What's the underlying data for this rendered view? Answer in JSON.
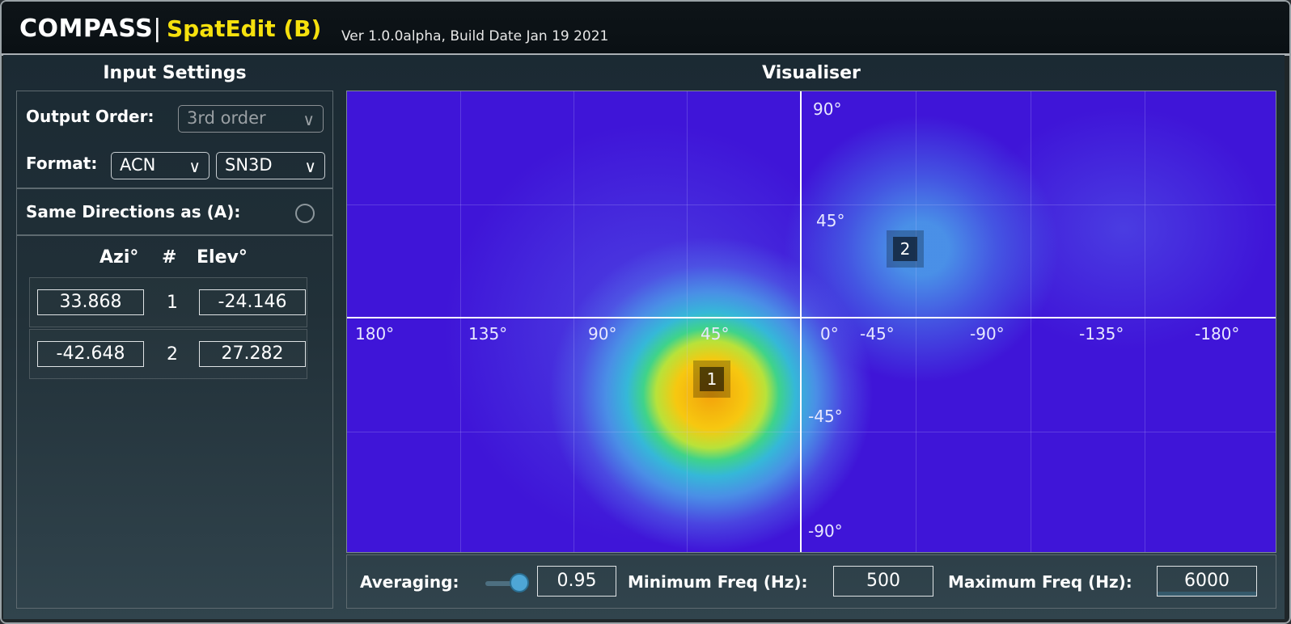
{
  "header": {
    "app_name": "COMPASS",
    "separator": "|",
    "plugin_name": "SpatEdit (B)",
    "version": "Ver 1.0.0alpha, Build Date Jan 19 2021"
  },
  "input_settings": {
    "title": "Input Settings",
    "output_order_label": "Output Order:",
    "output_order_value": "3rd order",
    "format_label": "Format:",
    "format_channel_value": "ACN",
    "format_norm_value": "SN3D",
    "same_directions_label": "Same Directions as (A):",
    "same_directions_checked": false,
    "table_headers": {
      "azi": "Azi°",
      "num": "#",
      "elev": "Elev°"
    },
    "sources": [
      {
        "azi": "33.868",
        "num": "1",
        "elev": "-24.146"
      },
      {
        "azi": "-42.648",
        "num": "2",
        "elev": "27.282"
      }
    ]
  },
  "visualiser": {
    "title": "Visualiser",
    "azimuth_ticks": [
      "180°",
      "135°",
      "90°",
      "45°",
      "0°",
      "-45°",
      "-90°",
      "-135°",
      "-180°"
    ],
    "elevation_ticks": [
      "90°",
      "45°",
      "-45°",
      "-90°"
    ],
    "markers": [
      "1",
      "2"
    ]
  },
  "controls": {
    "averaging_label": "Averaging:",
    "averaging_value": "0.95",
    "averaging_slider_level": 0.95,
    "min_freq_label": "Minimum Freq (Hz):",
    "min_freq_value": "500",
    "max_freq_label": "Maximum Freq (Hz):",
    "max_freq_value": "6000"
  },
  "colors": {
    "plugin_accent": "#f6e10d",
    "heatmap_background": "#3f15d8",
    "heatmap_peak": "#f2a10b"
  }
}
